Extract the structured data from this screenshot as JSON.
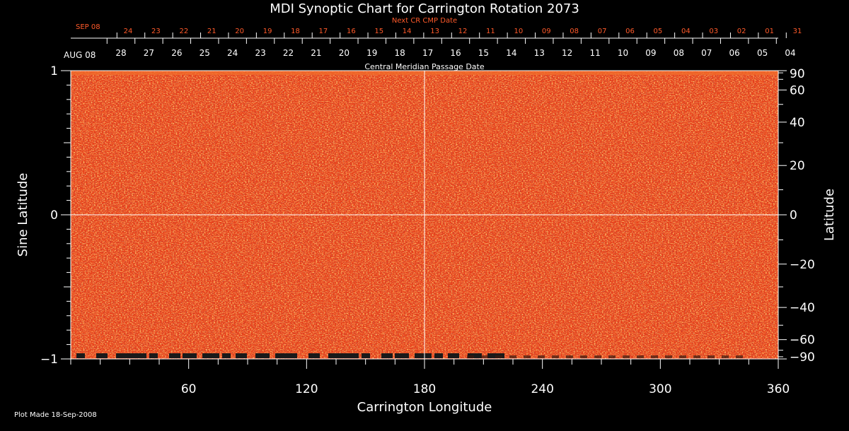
{
  "chart_data": {
    "type": "heatmap",
    "title": "MDI Synoptic Chart for Carrington Rotation 2073",
    "xlabel": "Carrington Longitude",
    "ylabel_left": "Sine Latitude",
    "ylabel_right": "Latitude",
    "xlim": [
      0,
      360
    ],
    "ylim": [
      -1,
      1
    ],
    "x_ticks": [
      60,
      120,
      180,
      240,
      300,
      360
    ],
    "y_ticks_left": [
      {
        "value": 1,
        "label": "1"
      },
      {
        "value": 0,
        "label": "0"
      },
      {
        "value": -1,
        "label": "−1"
      }
    ],
    "y_ticks_right": [
      {
        "value": 90,
        "label": "90"
      },
      {
        "value": 60,
        "label": "60"
      },
      {
        "value": 40,
        "label": "40"
      },
      {
        "value": 20,
        "label": "20"
      },
      {
        "value": 0,
        "label": "0"
      },
      {
        "value": -20,
        "label": "−20"
      },
      {
        "value": -40,
        "label": "−40"
      },
      {
        "value": -60,
        "label": "−60"
      },
      {
        "value": -90,
        "label": "−90"
      }
    ],
    "cmp_axis_label": "Central Meridian Passage Date",
    "cmp_start_label": "AUG 08",
    "cmp_dates": [
      "28",
      "27",
      "26",
      "25",
      "24",
      "23",
      "22",
      "21",
      "20",
      "19",
      "18",
      "17",
      "16",
      "15",
      "14",
      "13",
      "12",
      "11",
      "10",
      "09",
      "08",
      "07",
      "06",
      "05",
      "04"
    ],
    "next_cr_label": "Next CR CMP Date",
    "next_cr_start_label": "SEP 08",
    "next_cr_dates": [
      "24",
      "23",
      "22",
      "21",
      "20",
      "19",
      "18",
      "17",
      "16",
      "15",
      "14",
      "13",
      "12",
      "11",
      "10",
      "09",
      "08",
      "07",
      "06",
      "05",
      "04",
      "03",
      "02",
      "01",
      "31"
    ],
    "footer": "Plot Made 18-Sep-2008",
    "grid": {
      "center_meridian": 180,
      "equator": 0
    },
    "colors": {
      "background": "#000000",
      "map_base": "#e8401a",
      "map_highlight": "#ffb347",
      "map_dark": "#2a1a7a",
      "next_cr_text": "#ff5a2a",
      "axis": "#ffffff"
    }
  }
}
